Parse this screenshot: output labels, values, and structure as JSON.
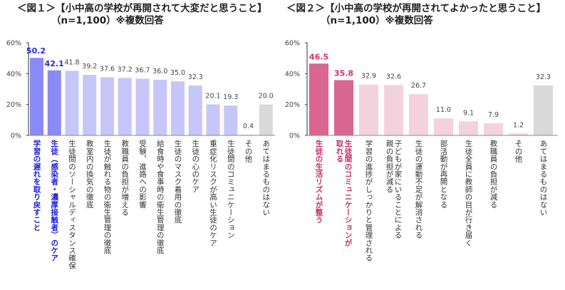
{
  "chart_data": [
    {
      "type": "bar",
      "title": "＜図１＞【小中高の学校が再開されて大変だと思うこと】",
      "subtitle": "（n=1,100）※複数回答",
      "xlabel": "",
      "ylabel": "",
      "ylim": [
        0,
        60
      ],
      "yticks": [
        "0%",
        "20%",
        "40%",
        "60%"
      ],
      "ytick_values": [
        0,
        20,
        40,
        60
      ],
      "grid": false,
      "legend": "none",
      "categories": [
        "学習の遅れを取り戻すこと",
        "生徒（感染者・濃厚接触者）のケア",
        "生徒間のソーシャルディスタンス確保",
        "教室内の換気の徹底",
        "生徒が触れる物の衛生管理の徹底",
        "教職員の負担が増える",
        "受験、進路への影響",
        "給食時や食事時の衛生管理の徹底",
        "生徒のマスク着用の徹底",
        "生徒の心のケア",
        "重症化リスクが高い生徒のケア",
        "生徒間のコミュニケーション",
        "その他",
        "あてはまるものはない"
      ],
      "values": [
        50.2,
        42.1,
        41.8,
        39.2,
        37.6,
        37.2,
        36.7,
        36.0,
        35.0,
        32.3,
        20.1,
        19.3,
        0.4,
        20.0
      ],
      "value_labels": [
        "50.2",
        "42.1",
        "41.8",
        "39.2",
        "37.6",
        "37.2",
        "36.7",
        "36.0",
        "35.0",
        "32.3",
        "20.1",
        "19.3",
        "0.4",
        "20.0"
      ],
      "highlight": [
        true,
        true,
        false,
        false,
        false,
        false,
        false,
        false,
        false,
        false,
        false,
        false,
        false,
        false
      ],
      "bar_kind": [
        "hl",
        "hl",
        "n",
        "n",
        "n",
        "n",
        "n",
        "n",
        "n",
        "n",
        "n",
        "n",
        "n",
        "none"
      ],
      "colors": {
        "highlight": "#8a8af7",
        "normal": "#c6c6fa",
        "none": "#d9d9d9",
        "highlight_text": "#1c1cd8"
      }
    },
    {
      "type": "bar",
      "title": "＜図２＞【小中高の学校が再開されてよかったと思うこと】",
      "subtitle": "（n=1,100）※複数回答",
      "xlabel": "",
      "ylabel": "",
      "ylim": [
        0,
        60
      ],
      "yticks": [
        "0%",
        "20%",
        "40%",
        "60%"
      ],
      "ytick_values": [
        0,
        20,
        40,
        60
      ],
      "grid": false,
      "legend": "none",
      "categories": [
        "生徒の生活リズムが整う",
        "生徒間のコミュニケーションが\n取れる",
        "学習の進捗がしっかりと管理される",
        "子どもが家にいることによる\n親の負担が減る",
        "生徒の運動不足が解消される",
        "部活動が再開となる",
        "生徒全員に教師の目が行き届く",
        "教職員の負担が減る",
        "その他",
        "あてはまるものはない"
      ],
      "values": [
        46.5,
        35.8,
        32.9,
        32.6,
        26.7,
        11.0,
        9.1,
        7.9,
        1.2,
        32.3
      ],
      "value_labels": [
        "46.5",
        "35.8",
        "32.9",
        "32.6",
        "26.7",
        "11.0",
        "9.1",
        "7.9",
        "1.2",
        "32.3"
      ],
      "highlight": [
        true,
        true,
        false,
        false,
        false,
        false,
        false,
        false,
        false,
        false
      ],
      "bar_kind": [
        "hl",
        "hl",
        "n",
        "n",
        "n",
        "n",
        "n",
        "n",
        "n",
        "none"
      ],
      "colors": {
        "highlight": "#d9668f",
        "normal": "#f3d2de",
        "none": "#d9d9d9",
        "highlight_text": "#c4306a"
      }
    }
  ]
}
